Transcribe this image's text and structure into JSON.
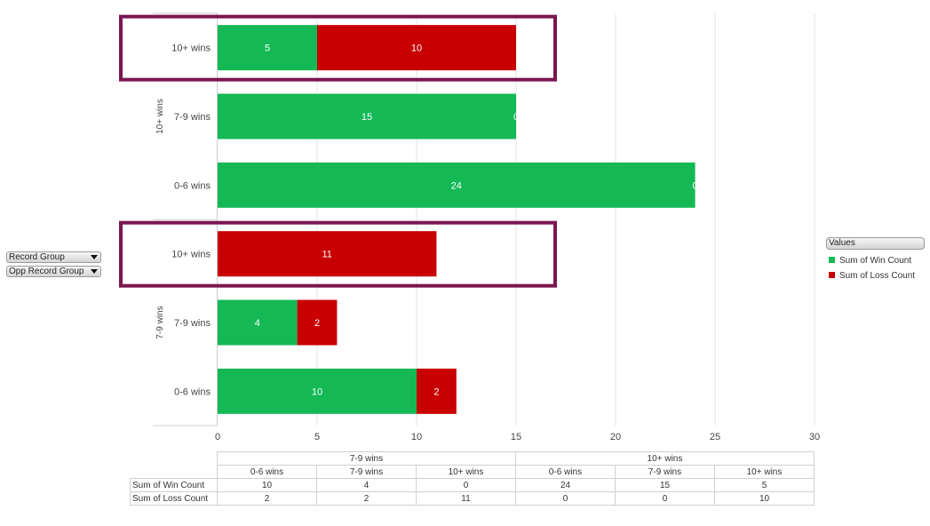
{
  "chart_data": {
    "type": "bar",
    "orientation": "horizontal",
    "stacked": true,
    "groups": [
      {
        "name": "7-9 wins",
        "categories": [
          "0-6 wins",
          "7-9 wins",
          "10+ wins"
        ]
      },
      {
        "name": "10+ wins",
        "categories": [
          "0-6 wins",
          "7-9 wins",
          "10+ wins"
        ]
      }
    ],
    "series": [
      {
        "name": "Sum of Win Count",
        "color": "#14b956",
        "values": [
          10,
          4,
          0,
          24,
          15,
          5
        ]
      },
      {
        "name": "Sum of Loss Count",
        "color": "#c80000",
        "values": [
          2,
          2,
          11,
          0,
          0,
          10
        ]
      }
    ],
    "xlim": [
      0,
      30
    ],
    "xticks": [
      0,
      5,
      10,
      15,
      20,
      25,
      30
    ],
    "grid": true,
    "legend_position": "right",
    "highlighted_rows": [
      {
        "group": "10+ wins",
        "category": "10+ wins"
      },
      {
        "group": "7-9 wins",
        "category": "10+ wins"
      }
    ],
    "highlight_color": "#7a1650"
  },
  "filters": [
    {
      "label": "Record Group"
    },
    {
      "label": "Opp Record Group"
    }
  ],
  "legend": {
    "title": "Values"
  }
}
